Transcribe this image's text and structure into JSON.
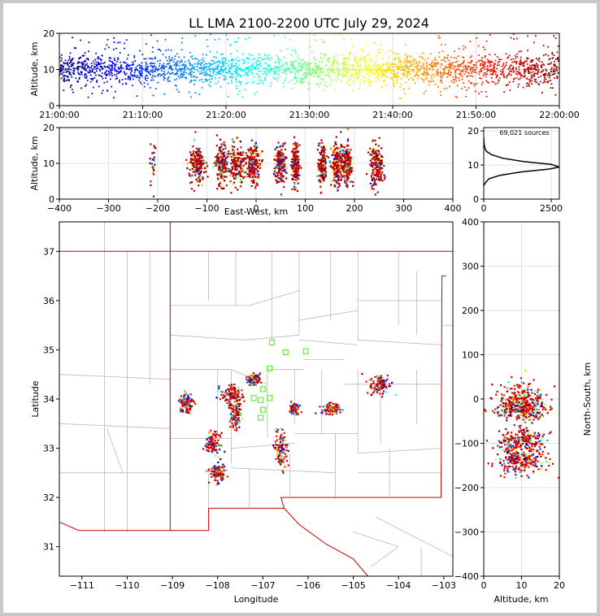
{
  "title": "LL LMA 2100-2200 UTC July 29, 2024",
  "colors": {
    "time_colormap": "jet",
    "state_border": "#cc0000",
    "county_lines": "#b8b8b8",
    "station_marker": "#66ee33",
    "density_line": "#000000"
  },
  "chart_data": [
    {
      "id": "time_altitude",
      "type": "scatter",
      "xlabel": "",
      "ylabel": "Altitude, km",
      "x_range": [
        "21:00:00",
        "22:00:00"
      ],
      "x_ticks": [
        "21:00:00",
        "21:10:00",
        "21:20:00",
        "21:30:00",
        "21:40:00",
        "21:50:00",
        "22:00:00"
      ],
      "ylim": [
        0,
        20
      ],
      "y_ticks": [
        "0",
        "10",
        "20"
      ],
      "grid": true,
      "approx_typical_altitude_km": [
        6,
        14
      ]
    },
    {
      "id": "ew_altitude",
      "type": "scatter",
      "xlabel": "East-West, km",
      "ylabel": "Altitude, km",
      "xlim": [
        -400,
        400
      ],
      "x_ticks": [
        "−400",
        "−300",
        "−200",
        "−100",
        "0",
        "100",
        "200",
        "300",
        "400"
      ],
      "ylim": [
        0,
        20
      ],
      "y_ticks": [
        "0",
        "10",
        "20"
      ],
      "grid": true,
      "approx_clusters_x_km": [
        -210,
        -120,
        -70,
        -40,
        -5,
        50,
        80,
        135,
        165,
        185,
        245
      ]
    },
    {
      "id": "altitude_histogram",
      "type": "line",
      "annotation": "69,021 sources",
      "xlim": [
        0,
        2800
      ],
      "x_ticks": [
        "0",
        "2500"
      ],
      "ylim": [
        0,
        21
      ],
      "y_ticks": [
        "0",
        "10",
        "20"
      ],
      "grid": true,
      "points": [
        [
          0,
          4
        ],
        [
          80,
          5
        ],
        [
          200,
          6
        ],
        [
          600,
          7
        ],
        [
          1400,
          8
        ],
        [
          2400,
          8.8
        ],
        [
          2800,
          9.4
        ],
        [
          2500,
          10.2
        ],
        [
          1500,
          11
        ],
        [
          700,
          12
        ],
        [
          300,
          13
        ],
        [
          100,
          14
        ],
        [
          40,
          15
        ],
        [
          10,
          16.5
        ],
        [
          0,
          18
        ]
      ]
    },
    {
      "id": "plan_view",
      "type": "scatter",
      "xlabel": "Longitude",
      "ylabel": "Latitude",
      "xlim": [
        -111.5,
        -102.8
      ],
      "x_ticks": [
        "−111",
        "−110",
        "−109",
        "−108",
        "−107",
        "−106",
        "−105",
        "−104",
        "−103"
      ],
      "ylim": [
        30.4,
        37.6
      ],
      "y_ticks": [
        "31",
        "32",
        "33",
        "34",
        "35",
        "36",
        "37"
      ],
      "grid": false,
      "approx_clusters_lonlat": [
        [
          -108.7,
          33.9
        ],
        [
          -108.1,
          33.1
        ],
        [
          -108.0,
          32.5
        ],
        [
          -107.7,
          34.1
        ],
        [
          -107.6,
          33.7
        ],
        [
          -107.2,
          34.4
        ],
        [
          -106.6,
          33.0
        ],
        [
          -106.3,
          33.8
        ],
        [
          -105.5,
          33.8
        ],
        [
          -104.4,
          34.3
        ]
      ],
      "stations_approx_lonlat": [
        [
          -106.8,
          35.15
        ],
        [
          -106.5,
          34.95
        ],
        [
          -106.05,
          34.97
        ],
        [
          -106.85,
          34.62
        ],
        [
          -107.0,
          34.2
        ],
        [
          -107.2,
          34.02
        ],
        [
          -107.05,
          33.98
        ],
        [
          -106.85,
          34.02
        ],
        [
          -107.0,
          33.78
        ],
        [
          -107.05,
          33.62
        ]
      ]
    },
    {
      "id": "altitude_north_south",
      "type": "scatter",
      "xlabel": "Altitude, km",
      "ylabel": "North-South, km",
      "xlim": [
        0,
        20
      ],
      "x_ticks": [
        "0",
        "10",
        "20"
      ],
      "ylim": [
        -400,
        400
      ],
      "y_ticks": [
        "−400",
        "−300",
        "−200",
        "−100",
        "0",
        "100",
        "200",
        "300",
        "400"
      ],
      "grid": true,
      "approx_clusters_y_km": [
        0,
        -25,
        -95,
        -140
      ]
    }
  ]
}
